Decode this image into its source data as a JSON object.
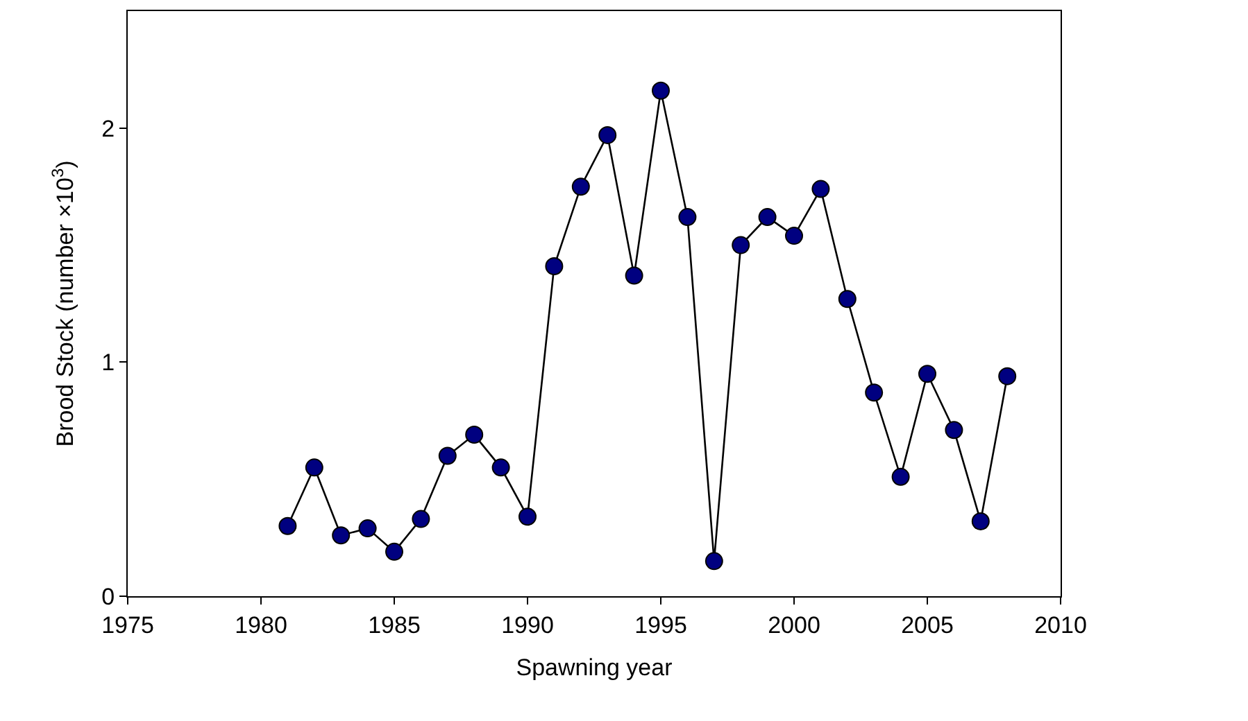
{
  "chart_data": {
    "type": "line",
    "xlabel": "Spawning year",
    "ylabel": "Brood Stock (number ×10$^{3}$)",
    "x": [
      1981,
      1982,
      1983,
      1984,
      1985,
      1986,
      1987,
      1988,
      1989,
      1990,
      1991,
      1992,
      1993,
      1994,
      1995,
      1996,
      1997,
      1998,
      1999,
      2000,
      2001,
      2002,
      2003,
      2004,
      2005,
      2006,
      2007,
      2008
    ],
    "series": [
      {
        "color": "#000080",
        "values": [
          0.3,
          0.55,
          0.26,
          0.29,
          0.19,
          0.33,
          0.6,
          0.69,
          0.55,
          0.34,
          1.41,
          1.75,
          1.97,
          1.37,
          2.16,
          1.62,
          0.15,
          1.5,
          1.62,
          1.54,
          1.74,
          1.27,
          0.87,
          0.51,
          0.95,
          0.71,
          0.32,
          0.94
        ]
      }
    ],
    "xlim": [
      1975,
      2010
    ],
    "xticks": [
      1975,
      1980,
      1985,
      1990,
      1995,
      2000,
      2005,
      2010
    ],
    "ylim": [
      0,
      2.5
    ],
    "yticks": [
      0,
      1,
      2
    ],
    "marker": "circle",
    "line_style": "solid"
  }
}
